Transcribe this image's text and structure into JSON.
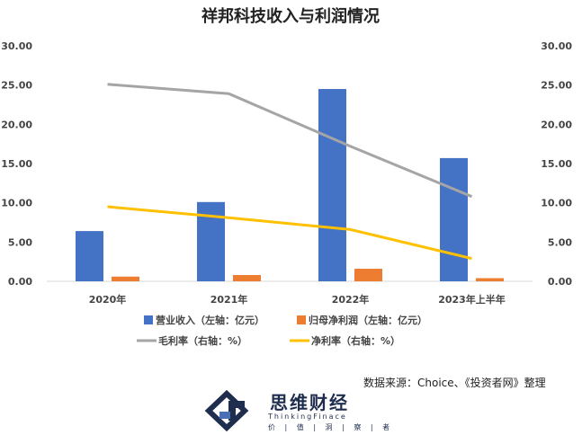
{
  "chart_data": {
    "type": "bar",
    "title": "祥邦科技收入与利润情况",
    "categories": [
      "2020年",
      "2021年",
      "2022年",
      "2023年上半年"
    ],
    "left_axis": {
      "ylim": [
        0,
        30
      ],
      "ticks": [
        "0.00",
        "5.00",
        "10.00",
        "15.00",
        "20.00",
        "25.00",
        "30.00"
      ]
    },
    "right_axis": {
      "ylim": [
        0,
        30
      ],
      "ticks": [
        "0.00",
        "5.00",
        "10.00",
        "15.00",
        "20.00",
        "25.00",
        "30.00"
      ]
    },
    "series": [
      {
        "name": "营业收入（左轴：亿元）",
        "kind": "bar",
        "axis": "left",
        "color": "#4472C4",
        "values": [
          6.4,
          10.1,
          24.5,
          15.7
        ]
      },
      {
        "name": "归母净利润（左轴：亿元）",
        "kind": "bar",
        "axis": "left",
        "color": "#ED7D31",
        "values": [
          0.6,
          0.8,
          1.6,
          0.4
        ]
      },
      {
        "name": "毛利率（右轴：%）",
        "kind": "line",
        "axis": "right",
        "color": "#A5A5A5",
        "values": [
          25.1,
          23.9,
          17.2,
          10.8
        ]
      },
      {
        "name": "净利率（右轴：%）",
        "kind": "line",
        "axis": "right",
        "color": "#FFC000",
        "values": [
          9.5,
          8.1,
          6.6,
          2.9
        ]
      }
    ],
    "grid": false,
    "legend_position": "bottom"
  },
  "source_text": "数据来源：Choice、《投资者网》整理",
  "logo": {
    "name": "思维财经",
    "english": "ThinkingFinace",
    "tagline": "价 | 值 | 洞 | 察 | 者"
  }
}
